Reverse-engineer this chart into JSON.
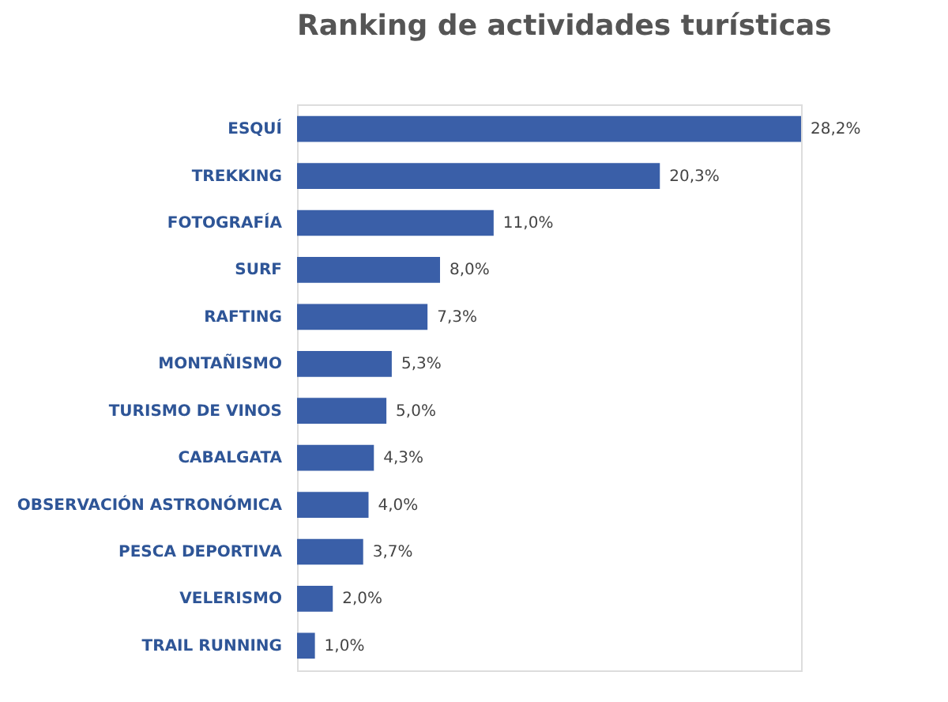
{
  "chart_data": {
    "type": "bar",
    "orientation": "horizontal",
    "title": "Ranking de actividades turísticas",
    "categories": [
      "ESQUÍ",
      "TREKKING",
      "FOTOGRAFÍA",
      "SURF",
      "RAFTING",
      "MONTAÑISMO",
      "TURISMO DE VINOS",
      "CABALGATA",
      "OBSERVACIÓN ASTRONÓMICA",
      "PESCA DEPORTIVA",
      "VELERISMO",
      "TRAIL RUNNING"
    ],
    "values": [
      28.2,
      20.3,
      11.0,
      8.0,
      7.3,
      5.3,
      5.0,
      4.3,
      4.0,
      3.7,
      2.0,
      1.0
    ],
    "value_labels": [
      "28,2%",
      "20,3%",
      "11,0%",
      "8,0%",
      "7,3%",
      "5,3%",
      "5,0%",
      "4,3%",
      "4,0%",
      "3,7%",
      "2,0%",
      "1,0%"
    ],
    "color": "#3a5fa8",
    "grid": false,
    "tick_labels": "y"
  }
}
